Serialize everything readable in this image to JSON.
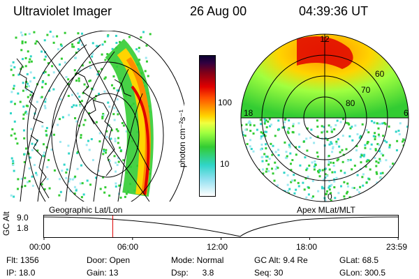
{
  "header": {
    "instrument": "Ultraviolet Imager",
    "date": "26 Aug 00",
    "time": "04:39:36 UT"
  },
  "panels": {
    "left_label": "Geographic Lat/Lon",
    "right_label": "Apex MLat/MLT",
    "polar_labels": {
      "top": "12",
      "left": "18",
      "right": "6",
      "bottom": "0",
      "ring1": "60",
      "ring2": "70",
      "ring3": "80"
    }
  },
  "colorbar": {
    "unit_label": "photon cm⁻²s⁻¹",
    "tick_100": "100",
    "tick_10": "10"
  },
  "timeline": {
    "ylabel": "GC Alt",
    "tick_top": "9.0",
    "tick_bottom": "1.8",
    "x_ticks": [
      "00:00",
      "06:00",
      "12:00",
      "18:00",
      "23:59"
    ],
    "current_time_fraction": 0.1942
  },
  "status": {
    "flt": "Flt: 1356",
    "door": "Door: Open",
    "mode": "Mode: Normal",
    "gc_alt": "GC Alt: 9.4 Re",
    "glat": "GLat: 68.5",
    "ip": "IP: 18.0",
    "gain": "Gain: 13",
    "dsp": "Dsp:      3.8",
    "seq": "Seq: 30",
    "glon": "GLon: 300.5"
  },
  "colors": {
    "red_marker": "#dd0000",
    "green": "#33cc33",
    "yellow": "#ffd400",
    "orange": "#ff8c00",
    "red": "#e00000",
    "dark_red": "#800018",
    "cyan": "#30d5c8"
  }
}
